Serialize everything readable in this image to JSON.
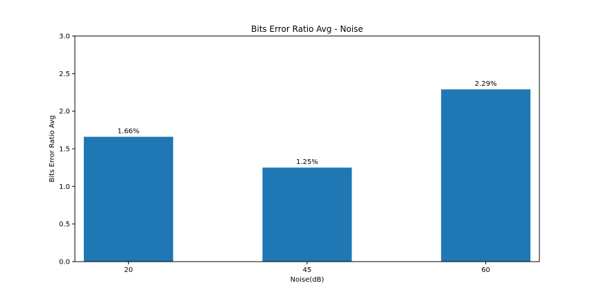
{
  "chart_data": {
    "type": "bar",
    "title": "Bits Error Ratio Avg - Noise",
    "xlabel": "Noise(dB)",
    "ylabel": "Bits Error Ratio Avg",
    "categories": [
      "20",
      "45",
      "60"
    ],
    "values": [
      1.66,
      1.25,
      2.29
    ],
    "data_labels": [
      "1.66%",
      "1.25%",
      "2.29%"
    ],
    "yticks": [
      "0.0",
      "0.5",
      "1.0",
      "1.5",
      "2.0",
      "2.5",
      "3.0"
    ],
    "ylim": [
      0,
      3
    ],
    "grid": false,
    "legend": "none",
    "bar_color": "#1f77b4"
  }
}
